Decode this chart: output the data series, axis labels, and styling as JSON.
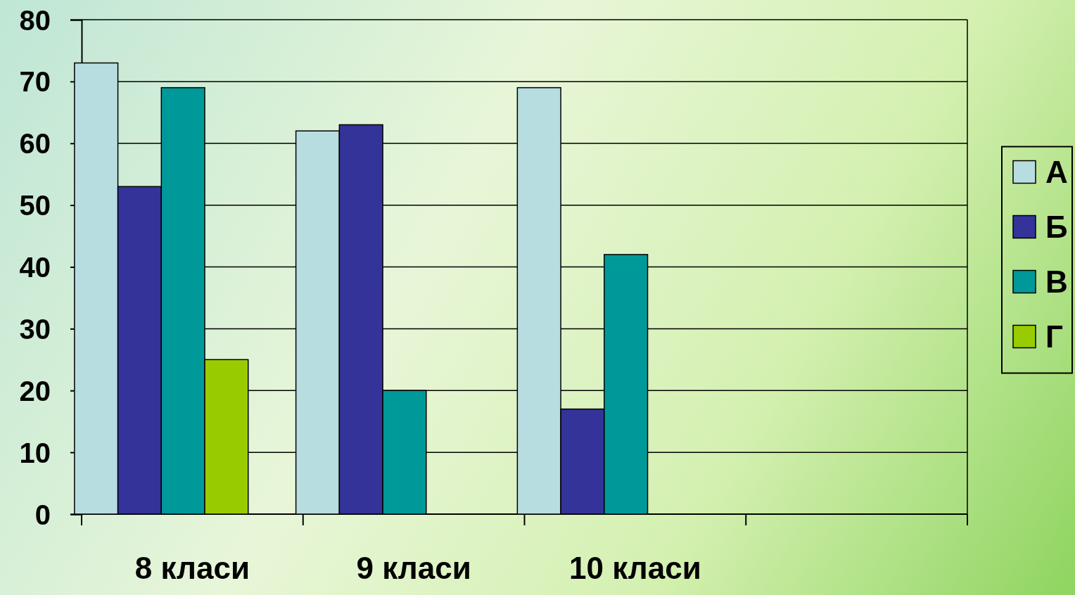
{
  "chart_data": {
    "type": "bar",
    "categories": [
      "8 класи",
      "9 класи",
      "10 класи",
      null
    ],
    "series": [
      {
        "name": "А",
        "color": "#b8dde0",
        "values": [
          73,
          62,
          69,
          null
        ]
      },
      {
        "name": "Б",
        "color": "#333399",
        "values": [
          53,
          63,
          17,
          null
        ]
      },
      {
        "name": "В",
        "color": "#009999",
        "values": [
          69,
          20,
          42,
          null
        ]
      },
      {
        "name": "Г",
        "color": "#99cc00",
        "values": [
          25,
          null,
          null,
          null
        ]
      }
    ],
    "ylim": [
      0,
      80
    ],
    "yticks": [
      0,
      10,
      20,
      30,
      40,
      50,
      60,
      70,
      80
    ],
    "grid": "y",
    "legend": "right"
  }
}
